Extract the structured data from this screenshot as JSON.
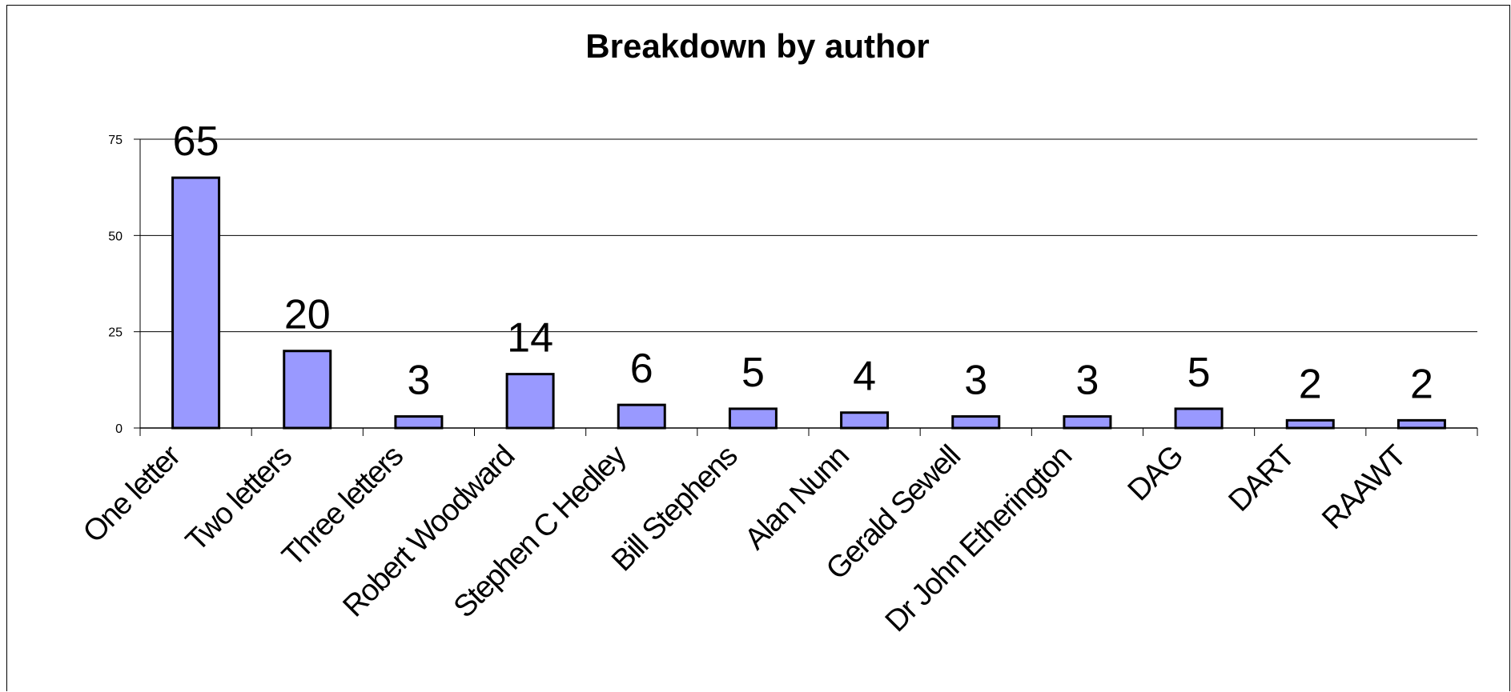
{
  "chart_data": {
    "type": "bar",
    "title": "Breakdown by author",
    "xlabel": "",
    "ylabel": "",
    "categories": [
      "One letter",
      "Two letters",
      "Three letters",
      "Robert Woodward",
      "Stephen C Hedley",
      "Bill Stephens",
      "Alan Nunn",
      "Gerald Sewell",
      "Dr John Etherington",
      "DAG",
      "DART",
      "RAAWT"
    ],
    "values": [
      65,
      20,
      3,
      14,
      6,
      5,
      4,
      3,
      3,
      5,
      2,
      2
    ],
    "data_labels": [
      "65",
      "20",
      "3",
      "14",
      "6",
      "5",
      "4",
      "3",
      "3",
      "5",
      "2",
      "2"
    ],
    "ylim": [
      0,
      75
    ],
    "yticks": [
      "0",
      "25",
      "50",
      "75"
    ],
    "grid": true,
    "legend": "none",
    "colors": {
      "bar_fill": "#9999ff",
      "bar_stroke": "#000000",
      "grid": "#000000",
      "text": "#000000"
    }
  }
}
